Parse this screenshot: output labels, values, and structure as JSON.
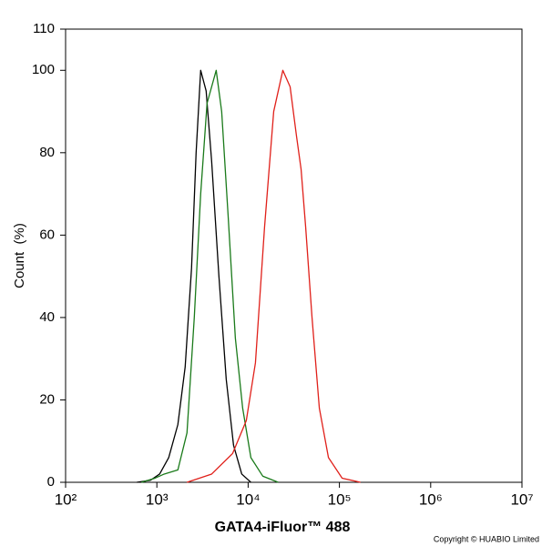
{
  "chart_data": {
    "type": "line",
    "x_label": "GATA4-iFluor™ 488",
    "y_label": "Count  (%)",
    "copyright": "Copyright © HUABIO Limited",
    "xscale": "log",
    "xlim": [
      100,
      10000000
    ],
    "xticks": [
      {
        "value": 100,
        "label": "10²"
      },
      {
        "value": 1000,
        "label": "10³"
      },
      {
        "value": 10000,
        "label": "10⁴"
      },
      {
        "value": 100000,
        "label": "10⁵"
      },
      {
        "value": 1000000,
        "label": "10⁶"
      },
      {
        "value": 10000000,
        "label": "10⁷"
      }
    ],
    "ylim": [
      0,
      110
    ],
    "yticks": [
      0,
      20,
      40,
      60,
      80,
      100,
      110
    ],
    "grid": false,
    "series": [
      {
        "color": "#000000",
        "x": [
          603,
          851,
          1072,
          1349,
          1698,
          2042,
          2399,
          2692,
          3020,
          3467,
          3981,
          4786,
          5754,
          6918,
          8511,
          10715
        ],
        "values": [
          0,
          0.5,
          2,
          6,
          14,
          28,
          52,
          80,
          100,
          95,
          78,
          50,
          25,
          9,
          2,
          0
        ]
      },
      {
        "color": "#1a7a1a",
        "x": [
          676,
          955,
          1202,
          1698,
          2138,
          2570,
          3020,
          3548,
          4467,
          5129,
          6026,
          7244,
          8710,
          10715,
          14454,
          21380
        ],
        "values": [
          0,
          1,
          2,
          3,
          12,
          40,
          70,
          92,
          100,
          90,
          65,
          35,
          18,
          6,
          1.5,
          0
        ]
      },
      {
        "color": "#e0201a",
        "x": [
          2138,
          3981,
          6761,
          9550,
          12023,
          15136,
          19055,
          23988,
          28840,
          33884,
          38019,
          42658,
          50119,
          60256,
          75858,
          107152,
          169824
        ],
        "values": [
          0,
          2,
          7,
          15,
          29,
          62,
          90,
          100,
          96,
          84,
          76,
          62,
          40,
          18,
          6,
          1,
          0
        ]
      }
    ]
  }
}
